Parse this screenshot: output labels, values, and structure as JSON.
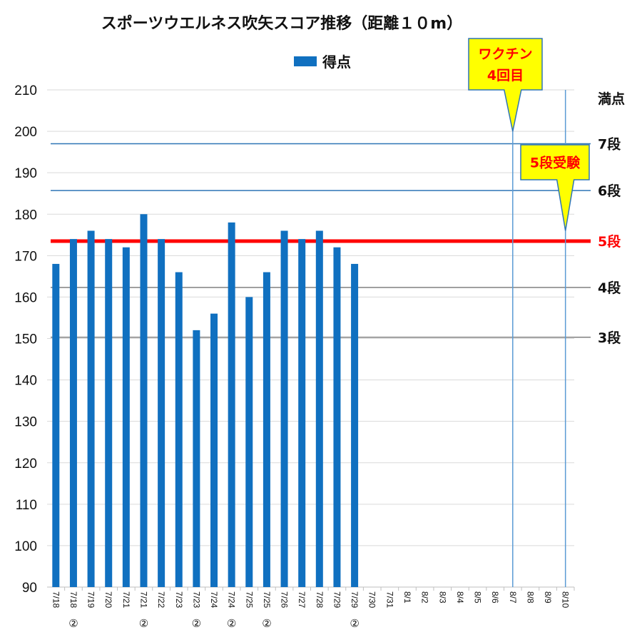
{
  "chart_data": {
    "type": "bar",
    "title": "スポーツウエルネス吹矢スコア推移（距離１０m）",
    "legend": {
      "label": "得点",
      "color": "#1070c0",
      "placement": "top-center"
    },
    "ylim": [
      90,
      210
    ],
    "yticks": [
      90,
      100,
      110,
      120,
      130,
      140,
      150,
      160,
      170,
      180,
      190,
      200,
      210
    ],
    "grid": true,
    "categories": [
      {
        "date": "7/18",
        "mark": ""
      },
      {
        "date": "7/18",
        "mark": "②"
      },
      {
        "date": "7/19",
        "mark": ""
      },
      {
        "date": "7/20",
        "mark": ""
      },
      {
        "date": "7/21",
        "mark": ""
      },
      {
        "date": "7/21",
        "mark": "②"
      },
      {
        "date": "7/22",
        "mark": ""
      },
      {
        "date": "7/23",
        "mark": ""
      },
      {
        "date": "7/23",
        "mark": "②"
      },
      {
        "date": "7/24",
        "mark": ""
      },
      {
        "date": "7/24",
        "mark": "②"
      },
      {
        "date": "7/25",
        "mark": ""
      },
      {
        "date": "7/25",
        "mark": "②"
      },
      {
        "date": "7/26",
        "mark": ""
      },
      {
        "date": "7/27",
        "mark": ""
      },
      {
        "date": "7/28",
        "mark": ""
      },
      {
        "date": "7/29",
        "mark": ""
      },
      {
        "date": "7/29",
        "mark": "②"
      },
      {
        "date": "7/30",
        "mark": ""
      },
      {
        "date": "7/31",
        "mark": ""
      },
      {
        "date": "8/1",
        "mark": ""
      },
      {
        "date": "8/2",
        "mark": ""
      },
      {
        "date": "8/3",
        "mark": ""
      },
      {
        "date": "8/4",
        "mark": ""
      },
      {
        "date": "8/5",
        "mark": ""
      },
      {
        "date": "8/6",
        "mark": ""
      },
      {
        "date": "8/7",
        "mark": ""
      },
      {
        "date": "8/8",
        "mark": ""
      },
      {
        "date": "8/9",
        "mark": ""
      },
      {
        "date": "8/10",
        "mark": ""
      }
    ],
    "series": [
      {
        "name": "得点",
        "color": "#1070c0",
        "values": [
          168,
          174,
          176,
          174,
          172,
          180,
          174,
          166,
          152,
          156,
          178,
          160,
          166,
          176,
          174,
          176,
          172,
          168,
          null,
          null,
          null,
          null,
          null,
          null,
          null,
          null,
          null,
          null,
          null,
          null
        ]
      }
    ],
    "reference_lines": [
      {
        "label": "満点",
        "value": 210,
        "color": "#d9d9d9",
        "width": 1
      },
      {
        "label": "7段",
        "value": 197,
        "color": "#2e75b6",
        "width": 1.5
      },
      {
        "label": "6段",
        "value": 185.7,
        "color": "#2e75b6",
        "width": 1.5
      },
      {
        "label": "5段",
        "value": 173.5,
        "color": "#ff0000",
        "width": 5,
        "label_color": "#ff0000"
      },
      {
        "label": "4段",
        "value": 162.3,
        "color": "#808080",
        "width": 1.5
      },
      {
        "label": "3段",
        "value": 150.3,
        "color": "#808080",
        "width": 1.5
      }
    ],
    "event_markers": [
      {
        "category_index": 26,
        "line_color": "#5b9bd5",
        "callout_lines": [
          "ワクチン",
          "4回目"
        ],
        "callout_fill": "#ffff00",
        "callout_stroke": "#2e75b6",
        "text_color": "#ff0000",
        "pointer_value": 200
      },
      {
        "category_index": 29,
        "line_color": "#5b9bd5",
        "callout_lines": [
          "5段受験"
        ],
        "callout_fill": "#ffff00",
        "callout_stroke": "#2e75b6",
        "text_color": "#ff0000",
        "pointer_value": 176
      }
    ]
  }
}
